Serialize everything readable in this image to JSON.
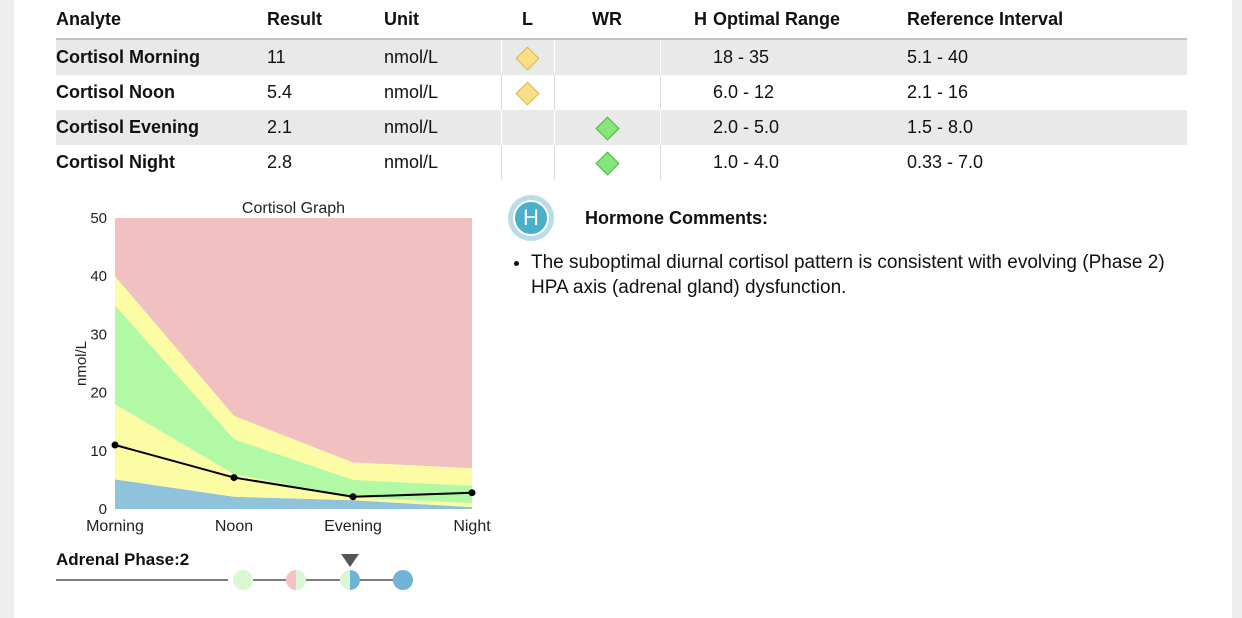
{
  "table": {
    "headers": {
      "analyte": "Analyte",
      "result": "Result",
      "unit": "Unit",
      "low": "L",
      "within": "WR",
      "high": "H",
      "optimal": "Optimal Range",
      "reference": "Reference Interval"
    },
    "rows": [
      {
        "analyte": "Cortisol Morning",
        "result": "11",
        "unit": "nmol/L",
        "flag": "L",
        "optimal": "18 - 35",
        "reference": "5.1 - 40"
      },
      {
        "analyte": "Cortisol Noon",
        "result": "5.4",
        "unit": "nmol/L",
        "flag": "L",
        "optimal": "6.0 - 12",
        "reference": "2.1 - 16"
      },
      {
        "analyte": "Cortisol Evening",
        "result": "2.1",
        "unit": "nmol/L",
        "flag": "WR",
        "optimal": "2.0 - 5.0",
        "reference": "1.5 - 8.0"
      },
      {
        "analyte": "Cortisol Night",
        "result": "2.8",
        "unit": "nmol/L",
        "flag": "WR",
        "optimal": "1.0 - 4.0",
        "reference": "0.33 - 7.0"
      }
    ]
  },
  "chart_data": {
    "type": "area",
    "title": "Cortisol Graph",
    "xlabel": "",
    "ylabel": "nmol/L",
    "categories": [
      "Morning",
      "Noon",
      "Evening",
      "Night"
    ],
    "ylim": [
      0,
      50
    ],
    "yticks": [
      0,
      10,
      20,
      30,
      40,
      50
    ],
    "bands": [
      {
        "color": "#8fc3dc",
        "lower": [
          0,
          0,
          0,
          0
        ],
        "upper": [
          5.1,
          2.1,
          1.5,
          0.33
        ]
      },
      {
        "color": "#fcfca4",
        "lower": [
          5.1,
          2.1,
          1.5,
          0.33
        ],
        "upper": [
          18,
          6.0,
          2.0,
          1.0
        ]
      },
      {
        "color": "#b2f9a6",
        "lower": [
          18,
          6.0,
          2.0,
          1.0
        ],
        "upper": [
          35,
          12,
          5.0,
          4.0
        ]
      },
      {
        "color": "#fcfca4",
        "lower": [
          35,
          12,
          5.0,
          4.0
        ],
        "upper": [
          40,
          16,
          8.0,
          7.0
        ]
      },
      {
        "color": "#f1c0c1",
        "lower": [
          40,
          16,
          8.0,
          7.0
        ],
        "upper": [
          50,
          50,
          50,
          50
        ]
      }
    ],
    "series": [
      {
        "values": [
          11,
          5.4,
          2.1,
          2.8
        ],
        "color": "#000000"
      }
    ],
    "grid": false
  },
  "phase": {
    "label": "Adrenal Phase:",
    "value": "2",
    "dots": [
      {
        "left": "#d8f7d2",
        "right": "#d8f7d2"
      },
      {
        "left": "#f3c1c4",
        "right": "#d8f7d2"
      },
      {
        "left": "#d8f7d2",
        "right": "#6fb3d6"
      },
      {
        "left": "#6fb3d6",
        "right": "#6fb3d6"
      }
    ],
    "selected_index": 2
  },
  "comments": {
    "icon_letter": "H",
    "title": "Hormone Comments:",
    "items": [
      "The suboptimal diurnal cortisol pattern is consistent with evolving (Phase 2) HPA axis (adrenal gland) dysfunction."
    ]
  }
}
